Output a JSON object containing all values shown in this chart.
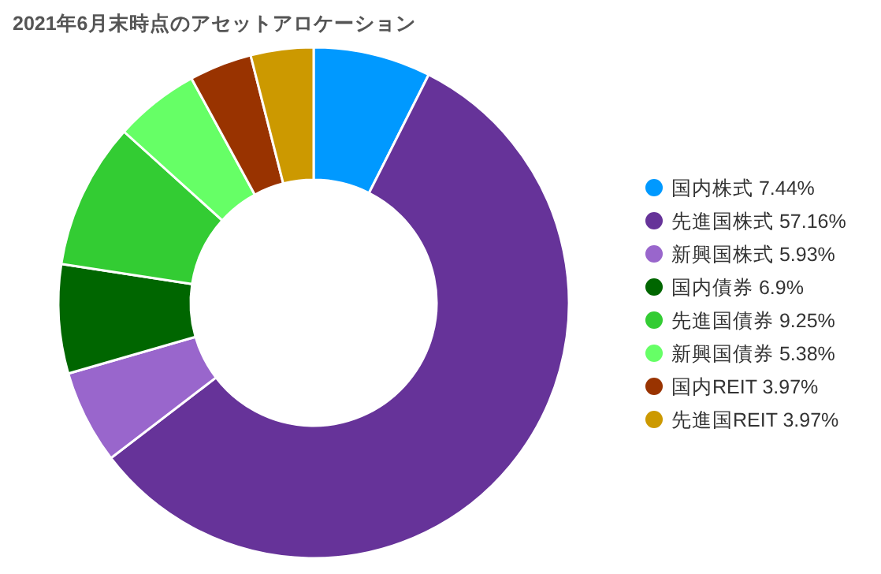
{
  "chart_data": {
    "type": "donut",
    "title": "2021年6月末時点のアセットアロケーション",
    "categories": [
      "国内株式",
      "先進国株式",
      "新興国株式",
      "国内債券",
      "先進国債券",
      "新興国債券",
      "国内REIT",
      "先進国REIT"
    ],
    "values": [
      7.44,
      57.16,
      5.93,
      6.9,
      9.25,
      5.38,
      3.97,
      3.97
    ],
    "value_labels": [
      "7.44%",
      "57.16%",
      "5.93%",
      "6.9%",
      "9.25%",
      "5.38%",
      "3.97%",
      "3.97%"
    ],
    "colors": [
      "#0099ff",
      "#663399",
      "#9966cc",
      "#006600",
      "#33cc33",
      "#66ff66",
      "#993300",
      "#cc9900"
    ],
    "legend": "right"
  }
}
